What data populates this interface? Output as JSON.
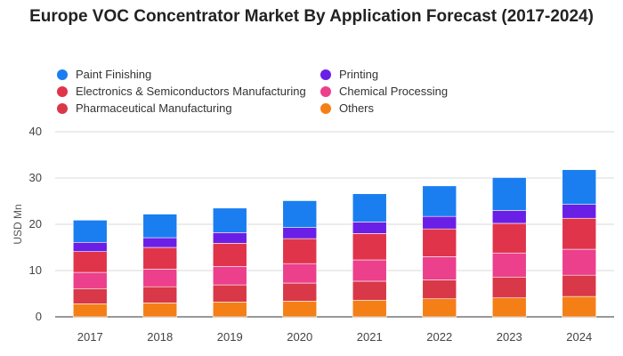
{
  "colors": {
    "paint_finishing": "#1a7ef0",
    "printing": "#6a1fe6",
    "electronics": "#e0344a",
    "chemical": "#ec3f8c",
    "pharma": "#d83848",
    "others": "#f57f17"
  },
  "chart_data": {
    "type": "bar",
    "stacked": true,
    "title": "Europe VOC Concentrator Market By Application Forecast (2017-2024)",
    "xlabel": "",
    "ylabel": "USD Mn",
    "ylim": [
      0,
      40
    ],
    "yticks": [
      "0",
      "10",
      "20",
      "30",
      "40"
    ],
    "grid": true,
    "legend_position": "top",
    "categories": [
      "2017",
      "2018",
      "2019",
      "2020",
      "2021",
      "2022",
      "2023",
      "2024"
    ],
    "series": [
      {
        "name": "Others",
        "color": "#f57f17",
        "values": [
          2.8,
          3.0,
          3.2,
          3.4,
          3.6,
          3.9,
          4.1,
          4.4
        ]
      },
      {
        "name": "Pharmaceutical Manufacturing",
        "color": "#d83848",
        "values": [
          3.3,
          3.5,
          3.7,
          3.9,
          4.1,
          4.1,
          4.5,
          4.6
        ]
      },
      {
        "name": "Chemical Processing",
        "color": "#ec3f8c",
        "values": [
          3.5,
          3.8,
          4.0,
          4.2,
          4.6,
          5.0,
          5.2,
          5.6
        ]
      },
      {
        "name": "Electronics & Semiconductors Manufacturing",
        "color": "#e0344a",
        "values": [
          4.5,
          4.7,
          5.0,
          5.4,
          5.7,
          6.0,
          6.4,
          6.7
        ]
      },
      {
        "name": "Printing",
        "color": "#6a1fe6",
        "values": [
          2.0,
          2.1,
          2.3,
          2.4,
          2.5,
          2.7,
          2.8,
          3.0
        ]
      },
      {
        "name": "Paint Finishing",
        "color": "#1a7ef0",
        "values": [
          4.8,
          5.1,
          5.3,
          5.8,
          6.1,
          6.6,
          7.1,
          7.5
        ]
      }
    ]
  },
  "legend": [
    {
      "label": "Paint Finishing",
      "color": "#1a7ef0"
    },
    {
      "label": "Printing",
      "color": "#6a1fe6"
    },
    {
      "label": "Electronics & Semiconductors Manufacturing",
      "color": "#e0344a"
    },
    {
      "label": "Chemical Processing",
      "color": "#ec3f8c"
    },
    {
      "label": "Pharmaceutical Manufacturing",
      "color": "#d83848"
    },
    {
      "label": "Others",
      "color": "#f57f17"
    }
  ]
}
